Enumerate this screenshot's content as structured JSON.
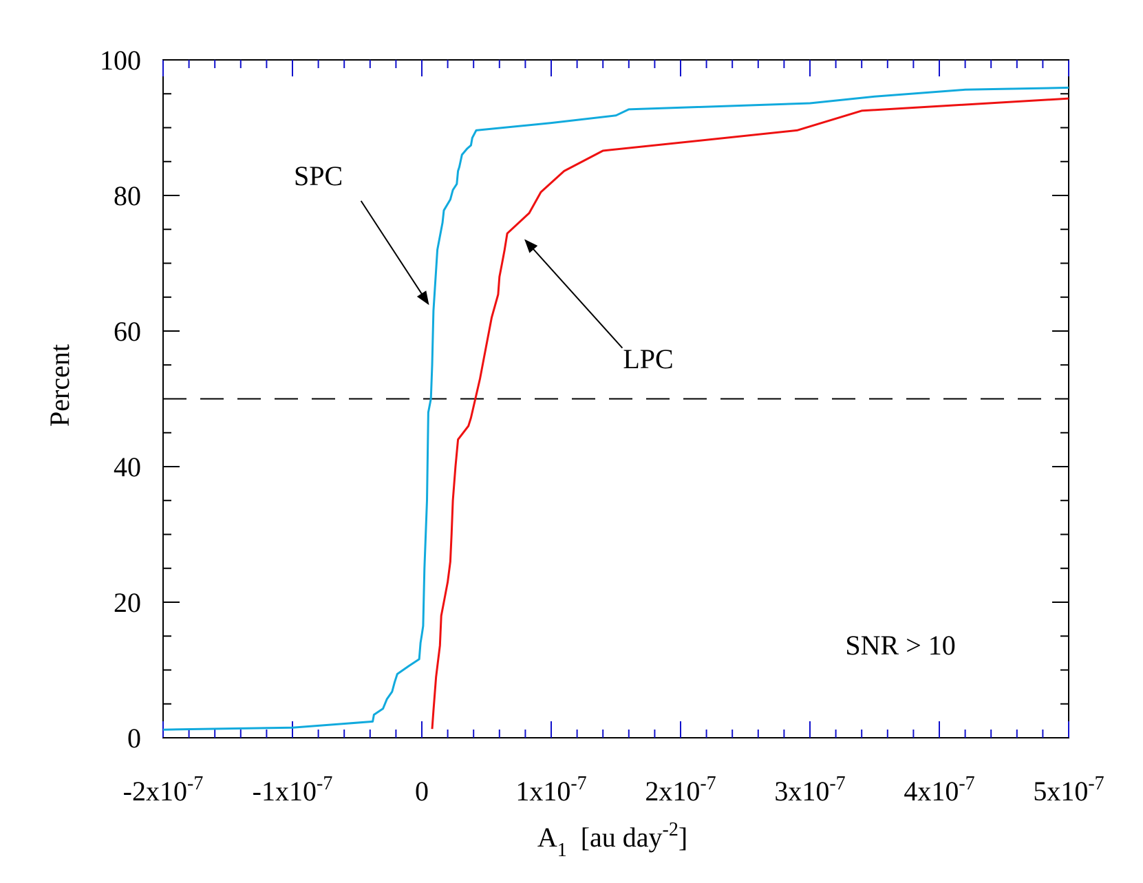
{
  "chart_data": {
    "type": "line",
    "title": "",
    "xlabel": {
      "base": "A",
      "sub": "1",
      "units_pre": "[au day",
      "units_sup": "-2",
      "units_post": "]"
    },
    "ylabel": "Percent",
    "xlim": [
      -2e-07,
      5e-07
    ],
    "ylim": [
      0,
      100
    ],
    "xscale": "linear",
    "grid": false,
    "legend": "none",
    "x_ticks": [
      {
        "value": -2e-07,
        "mant": "-2x10",
        "exp": "-7"
      },
      {
        "value": -1e-07,
        "mant": "-1x10",
        "exp": "-7"
      },
      {
        "value": 0,
        "mant": "0",
        "exp": ""
      },
      {
        "value": 1e-07,
        "mant": "1x10",
        "exp": "-7"
      },
      {
        "value": 2e-07,
        "mant": "2x10",
        "exp": "-7"
      },
      {
        "value": 3e-07,
        "mant": "3x10",
        "exp": "-7"
      },
      {
        "value": 4e-07,
        "mant": "4x10",
        "exp": "-7"
      },
      {
        "value": 5e-07,
        "mant": "5x10",
        "exp": "-7"
      }
    ],
    "x_minor_step": 2e-08,
    "y_ticks": [
      {
        "value": 0,
        "label": "0"
      },
      {
        "value": 20,
        "label": "20"
      },
      {
        "value": 40,
        "label": "40"
      },
      {
        "value": 60,
        "label": "60"
      },
      {
        "value": 80,
        "label": "80"
      },
      {
        "value": 100,
        "label": "100"
      }
    ],
    "y_minor_step": 5,
    "reference_line": {
      "y": 50,
      "style": "dashed",
      "color": "#000000"
    },
    "series": [
      {
        "name": "SPC",
        "color": "#11AADD",
        "points": [
          [
            -2e-07,
            1.2
          ],
          [
            -1e-07,
            1.5
          ],
          [
            -3.8e-08,
            2.4
          ],
          [
            -3.7e-08,
            3.4
          ],
          [
            -3e-08,
            4.3
          ],
          [
            -2.7e-08,
            5.7
          ],
          [
            -2.3e-08,
            6.8
          ],
          [
            -2.1e-08,
            8.2
          ],
          [
            -1.9e-08,
            9.4
          ],
          [
            -1e-08,
            10.6
          ],
          [
            -2e-09,
            11.6
          ],
          [
            -1e-09,
            14.0
          ],
          [
            0.0,
            15.2
          ],
          [
            1e-09,
            16.5
          ],
          [
            2e-09,
            25
          ],
          [
            4e-09,
            35
          ],
          [
            5e-09,
            48
          ],
          [
            7e-09,
            50
          ],
          [
            8e-09,
            55
          ],
          [
            9e-09,
            63
          ],
          [
            1.2e-08,
            72
          ],
          [
            1.5e-08,
            75
          ],
          [
            1.6e-08,
            76
          ],
          [
            1.7e-08,
            77.8
          ],
          [
            2.2e-08,
            79.4
          ],
          [
            2.4e-08,
            80.8
          ],
          [
            2.7e-08,
            81.7
          ],
          [
            2.8e-08,
            83.6
          ],
          [
            2.9e-08,
            84.2
          ],
          [
            3e-08,
            85.1
          ],
          [
            3.1e-08,
            86.0
          ],
          [
            3.5e-08,
            86.9
          ],
          [
            3.8e-08,
            87.4
          ],
          [
            3.9e-08,
            88.5
          ],
          [
            4.2e-08,
            89.6
          ],
          [
            1e-07,
            90.7
          ],
          [
            1.5e-07,
            91.8
          ],
          [
            1.6e-07,
            92.7
          ],
          [
            3e-07,
            93.6
          ],
          [
            3.5e-07,
            94.6
          ],
          [
            4.2e-07,
            95.6
          ],
          [
            5e-07,
            95.9
          ]
        ]
      },
      {
        "name": "LPC",
        "color": "#EE1111",
        "points": [
          [
            8e-09,
            1.3
          ],
          [
            9e-09,
            4.0
          ],
          [
            1.1e-08,
            9.0
          ],
          [
            1.4e-08,
            13.6
          ],
          [
            1.5e-08,
            18
          ],
          [
            1.7e-08,
            20
          ],
          [
            2e-08,
            23
          ],
          [
            2.2e-08,
            26
          ],
          [
            2.3e-08,
            30
          ],
          [
            2.4e-08,
            35
          ],
          [
            2.6e-08,
            40
          ],
          [
            2.8e-08,
            44
          ],
          [
            3.6e-08,
            46
          ],
          [
            3.8e-08,
            47.2
          ],
          [
            4.5e-08,
            53
          ],
          [
            4.8e-08,
            56
          ],
          [
            5.4e-08,
            62
          ],
          [
            5.9e-08,
            65.4
          ],
          [
            6e-08,
            68
          ],
          [
            6.2e-08,
            70
          ],
          [
            6.4e-08,
            72
          ],
          [
            6.6e-08,
            74.4
          ],
          [
            8.3e-08,
            77.4
          ],
          [
            9.2e-08,
            80.5
          ],
          [
            1.1e-07,
            83.6
          ],
          [
            1.4e-07,
            86.6
          ],
          [
            2.9e-07,
            89.6
          ],
          [
            3.4e-07,
            92.5
          ],
          [
            5e-07,
            94.3
          ]
        ]
      }
    ],
    "annotations": [
      {
        "text": "SPC",
        "x": -8e-08,
        "y": 81.5,
        "arrow_from": [
          -4.7e-08,
          79.2
        ],
        "arrow_to": [
          5e-09,
          64
        ]
      },
      {
        "text": "LPC",
        "x": 1.75e-07,
        "y": 54.5,
        "arrow_from": [
          1.55e-07,
          57.5
        ],
        "arrow_to": [
          8e-08,
          73.4
        ]
      },
      {
        "text": "SNR > 10",
        "x": 3.7e-07,
        "y": 12.3
      }
    ]
  }
}
